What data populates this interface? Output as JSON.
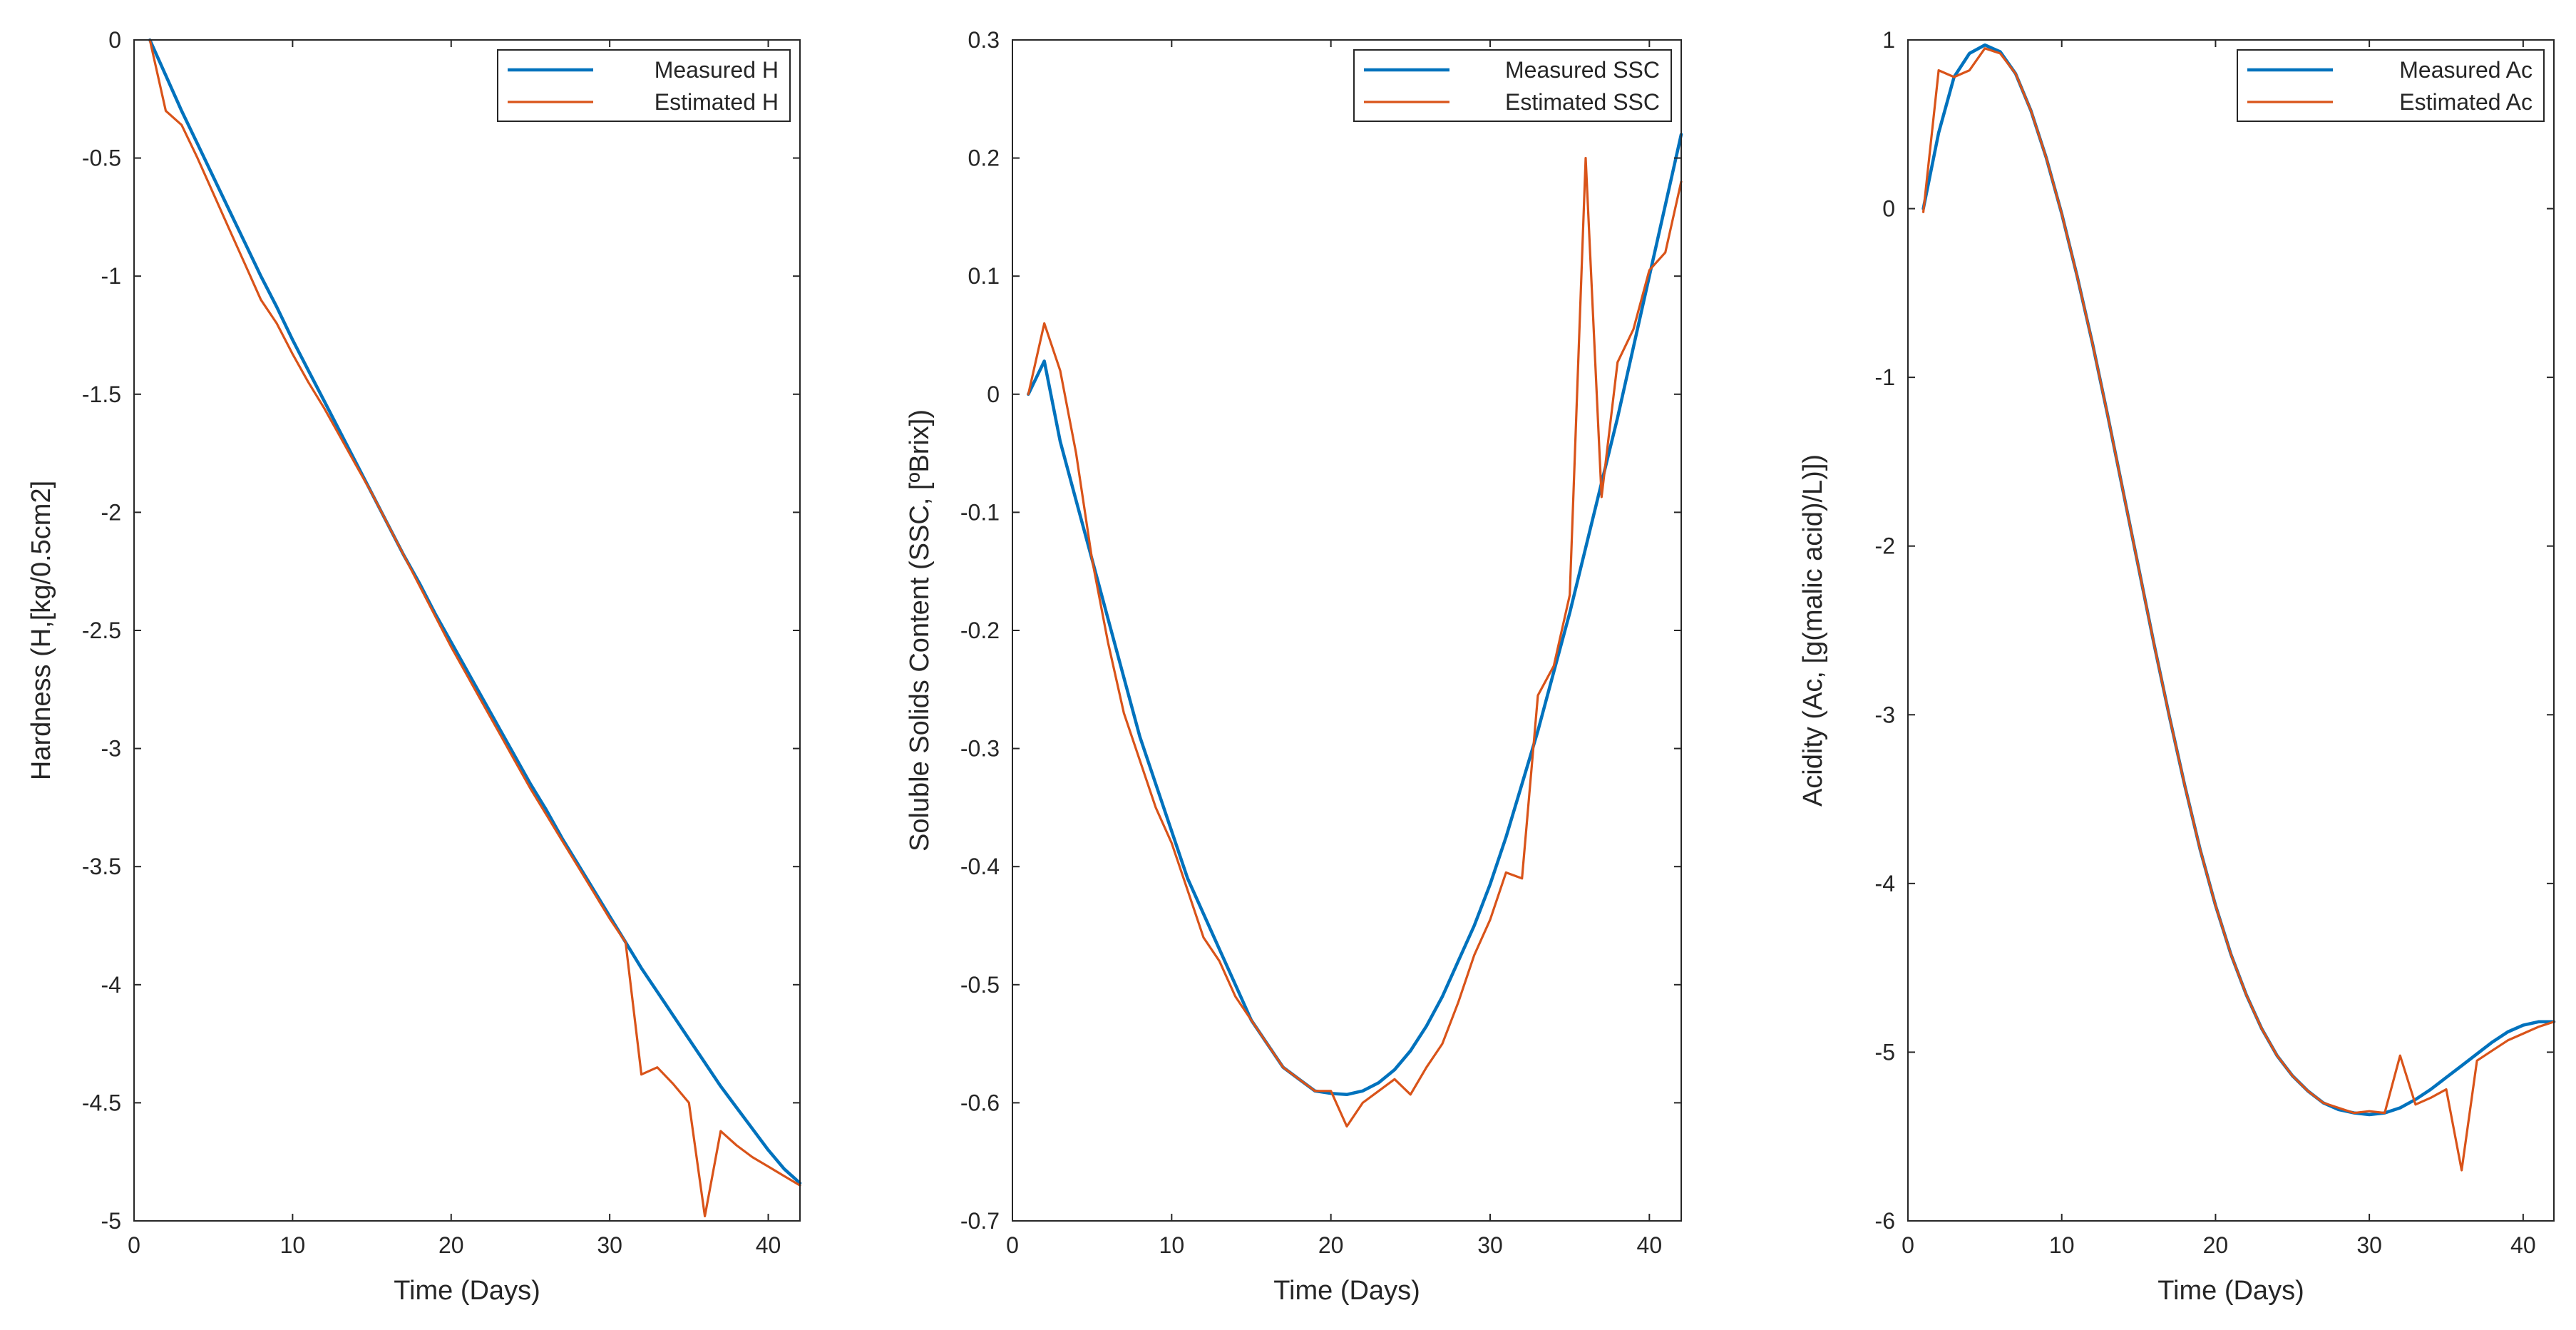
{
  "colors": {
    "measured": "#0072BD",
    "estimated": "#D95319",
    "axis": "#262626"
  },
  "chart_data": [
    {
      "type": "line",
      "xlabel": "Time (Days)",
      "ylabel": "Hardness (H,[kg/0.5cm2]",
      "xlim": [
        0,
        42
      ],
      "ylim": [
        -5,
        0
      ],
      "xticks": [
        0,
        10,
        20,
        30,
        40
      ],
      "yticks": [
        0,
        -0.5,
        -1,
        -1.5,
        -2,
        -2.5,
        -3,
        -3.5,
        -4,
        -4.5,
        -5
      ],
      "xtick_labels": [
        "0",
        "10",
        "20",
        "30",
        "40"
      ],
      "ytick_labels": [
        "0",
        "-0.5",
        "-1",
        "-1.5",
        "-2",
        "-2.5",
        "-3",
        "-3.5",
        "-4",
        "-4.5",
        "-5"
      ],
      "legend_position": "top-right",
      "series": [
        {
          "name": "Measured H",
          "x": [
            1,
            2,
            3,
            4,
            5,
            6,
            7,
            8,
            9,
            10,
            11,
            12,
            13,
            14,
            15,
            16,
            17,
            18,
            19,
            20,
            21,
            22,
            23,
            24,
            25,
            26,
            27,
            28,
            29,
            30,
            31,
            32,
            33,
            34,
            35,
            36,
            37,
            38,
            39,
            40,
            41,
            42
          ],
          "y": [
            0,
            -0.15,
            -0.3,
            -0.44,
            -0.58,
            -0.72,
            -0.86,
            -1.0,
            -1.13,
            -1.27,
            -1.4,
            -1.53,
            -1.66,
            -1.79,
            -1.92,
            -2.05,
            -2.18,
            -2.3,
            -2.43,
            -2.55,
            -2.67,
            -2.79,
            -2.91,
            -3.03,
            -3.15,
            -3.26,
            -3.38,
            -3.49,
            -3.6,
            -3.71,
            -3.82,
            -3.93,
            -4.03,
            -4.13,
            -4.23,
            -4.33,
            -4.43,
            -4.52,
            -4.61,
            -4.7,
            -4.78,
            -4.84
          ]
        },
        {
          "name": "Estimated H",
          "x": [
            1,
            2,
            3,
            4,
            5,
            6,
            7,
            8,
            9,
            10,
            11,
            12,
            13,
            14,
            15,
            16,
            17,
            18,
            19,
            20,
            21,
            22,
            23,
            24,
            25,
            26,
            27,
            28,
            29,
            30,
            31,
            32,
            33,
            34,
            35,
            36,
            37,
            38,
            39,
            40,
            41,
            42
          ],
          "y": [
            0,
            -0.3,
            -0.36,
            -0.5,
            -0.65,
            -0.8,
            -0.95,
            -1.1,
            -1.2,
            -1.33,
            -1.45,
            -1.56,
            -1.68,
            -1.8,
            -1.92,
            -2.05,
            -2.18,
            -2.31,
            -2.44,
            -2.57,
            -2.69,
            -2.81,
            -2.93,
            -3.05,
            -3.17,
            -3.28,
            -3.39,
            -3.5,
            -3.61,
            -3.72,
            -3.82,
            -4.38,
            -4.35,
            -4.42,
            -4.5,
            -4.98,
            -4.62,
            -4.68,
            -4.73,
            -4.77,
            -4.81,
            -4.85
          ]
        }
      ]
    },
    {
      "type": "line",
      "xlabel": "Time (Days)",
      "ylabel": "Soluble Solids Content (SSC, [ºBrix])",
      "xlim": [
        0,
        42
      ],
      "ylim": [
        -0.7,
        0.3
      ],
      "xticks": [
        0,
        10,
        20,
        30,
        40
      ],
      "yticks": [
        0.3,
        0.2,
        0.1,
        0,
        -0.1,
        -0.2,
        -0.3,
        -0.4,
        -0.5,
        -0.6,
        -0.7
      ],
      "xtick_labels": [
        "0",
        "10",
        "20",
        "30",
        "40"
      ],
      "ytick_labels": [
        "0.3",
        "0.2",
        "0.1",
        "0",
        "-0.1",
        "-0.2",
        "-0.3",
        "-0.4",
        "-0.5",
        "-0.6",
        "-0.7"
      ],
      "legend_position": "top-right",
      "series": [
        {
          "name": "Measured SSC",
          "x": [
            1,
            2,
            3,
            4,
            5,
            6,
            7,
            8,
            9,
            10,
            11,
            12,
            13,
            14,
            15,
            16,
            17,
            18,
            19,
            20,
            21,
            22,
            23,
            24,
            25,
            26,
            27,
            28,
            29,
            30,
            31,
            32,
            33,
            34,
            35,
            36,
            37,
            38,
            39,
            40,
            41,
            42
          ],
          "y": [
            0,
            0.028,
            -0.04,
            -0.09,
            -0.14,
            -0.19,
            -0.24,
            -0.29,
            -0.33,
            -0.37,
            -0.41,
            -0.44,
            -0.47,
            -0.5,
            -0.53,
            -0.55,
            -0.57,
            -0.58,
            -0.59,
            -0.592,
            -0.593,
            -0.59,
            -0.583,
            -0.572,
            -0.556,
            -0.535,
            -0.51,
            -0.48,
            -0.45,
            -0.415,
            -0.375,
            -0.33,
            -0.285,
            -0.235,
            -0.185,
            -0.13,
            -0.075,
            -0.02,
            0.04,
            0.1,
            0.16,
            0.22
          ]
        },
        {
          "name": "Estimated SSC",
          "x": [
            1,
            2,
            3,
            4,
            5,
            6,
            7,
            8,
            9,
            10,
            11,
            12,
            13,
            14,
            15,
            16,
            17,
            18,
            19,
            20,
            21,
            22,
            23,
            24,
            25,
            26,
            27,
            28,
            29,
            30,
            31,
            32,
            33,
            34,
            35,
            36,
            37,
            38,
            39,
            40,
            41,
            42
          ],
          "y": [
            0,
            0.06,
            0.02,
            -0.05,
            -0.14,
            -0.21,
            -0.27,
            -0.31,
            -0.35,
            -0.38,
            -0.42,
            -0.46,
            -0.48,
            -0.51,
            -0.53,
            -0.55,
            -0.57,
            -0.58,
            -0.59,
            -0.59,
            -0.62,
            -0.6,
            -0.59,
            -0.58,
            -0.593,
            -0.57,
            -0.55,
            -0.515,
            -0.475,
            -0.445,
            -0.405,
            -0.41,
            -0.255,
            -0.23,
            -0.17,
            0.2,
            -0.087,
            0.027,
            0.055,
            0.105,
            0.12,
            0.18
          ]
        }
      ]
    },
    {
      "type": "line",
      "xlabel": "Time (Days)",
      "ylabel": "Acidity (Ac, [g(malic acid)/L)])",
      "xlim": [
        0,
        42
      ],
      "ylim": [
        -6,
        1
      ],
      "xticks": [
        0,
        10,
        20,
        30,
        40
      ],
      "yticks": [
        1,
        0,
        -1,
        -2,
        -3,
        -4,
        -5,
        -6
      ],
      "xtick_labels": [
        "0",
        "10",
        "20",
        "30",
        "40"
      ],
      "ytick_labels": [
        "1",
        "0",
        "-1",
        "-2",
        "-3",
        "-4",
        "-5",
        "-6"
      ],
      "legend_position": "top-right",
      "series": [
        {
          "name": "Measured Ac",
          "x": [
            1,
            2,
            3,
            4,
            5,
            6,
            7,
            8,
            9,
            10,
            11,
            12,
            13,
            14,
            15,
            16,
            17,
            18,
            19,
            20,
            21,
            22,
            23,
            24,
            25,
            26,
            27,
            28,
            29,
            30,
            31,
            32,
            33,
            34,
            35,
            36,
            37,
            38,
            39,
            40,
            41,
            42
          ],
          "y": [
            0,
            0.45,
            0.78,
            0.92,
            0.97,
            0.93,
            0.8,
            0.58,
            0.3,
            -0.03,
            -0.4,
            -0.8,
            -1.23,
            -1.68,
            -2.13,
            -2.58,
            -3.01,
            -3.42,
            -3.8,
            -4.13,
            -4.42,
            -4.66,
            -4.86,
            -5.02,
            -5.14,
            -5.23,
            -5.3,
            -5.34,
            -5.36,
            -5.37,
            -5.36,
            -5.33,
            -5.28,
            -5.22,
            -5.15,
            -5.08,
            -5.01,
            -4.94,
            -4.88,
            -4.84,
            -4.82,
            -4.82
          ]
        },
        {
          "name": "Estimated Ac",
          "x": [
            1,
            2,
            3,
            4,
            5,
            6,
            7,
            8,
            9,
            10,
            11,
            12,
            13,
            14,
            15,
            16,
            17,
            18,
            19,
            20,
            21,
            22,
            23,
            24,
            25,
            26,
            27,
            28,
            29,
            30,
            31,
            32,
            33,
            34,
            35,
            36,
            37,
            38,
            39,
            40,
            41,
            42
          ],
          "y": [
            -0.02,
            0.82,
            0.78,
            0.82,
            0.95,
            0.92,
            0.8,
            0.58,
            0.3,
            -0.03,
            -0.4,
            -0.8,
            -1.23,
            -1.68,
            -2.13,
            -2.58,
            -3.01,
            -3.42,
            -3.8,
            -4.13,
            -4.42,
            -4.66,
            -4.86,
            -5.02,
            -5.14,
            -5.23,
            -5.3,
            -5.33,
            -5.36,
            -5.35,
            -5.36,
            -5.02,
            -5.31,
            -5.27,
            -5.22,
            -5.7,
            -5.05,
            -4.99,
            -4.93,
            -4.89,
            -4.85,
            -4.82
          ]
        }
      ]
    }
  ]
}
